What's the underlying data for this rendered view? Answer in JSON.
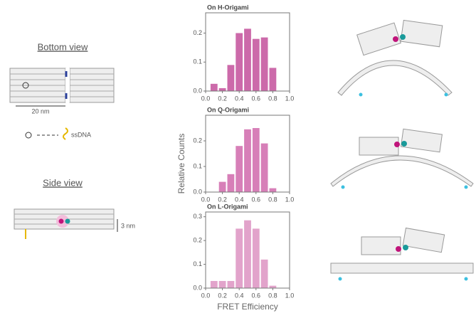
{
  "figure": {
    "ylabel": "Relative Counts",
    "xlabel": "FRET Efficiency",
    "bottom_view": "Bottom view",
    "scale": "20 nm",
    "ssdna": "ssDNA",
    "side_view": "Side view",
    "height": "3 nm"
  },
  "chart_data": [
    {
      "type": "histogram",
      "title": "On H-Origami",
      "color": "#cc6aaa",
      "bins": [
        0.05,
        0.15,
        0.25,
        0.35,
        0.45,
        0.55,
        0.65,
        0.75,
        0.85
      ],
      "values": [
        0.025,
        0.01,
        0.09,
        0.2,
        0.215,
        0.18,
        0.185,
        0.08
      ],
      "xlim": [
        0,
        1
      ],
      "xticks": [
        {
          "value": 0,
          "label": "0.0"
        },
        0.2,
        0.4,
        0.6,
        0.8,
        {
          "value": 1,
          "label": "1.0"
        }
      ],
      "ylim": [
        0,
        0.27
      ],
      "yticks": [
        {
          "value": 0,
          "label": "0.0"
        },
        0.1,
        0.2
      ]
    },
    {
      "type": "histogram",
      "title": "On Q-Origami",
      "color": "#d77fb8",
      "bins": [
        0.05,
        0.15,
        0.25,
        0.35,
        0.45,
        0.55,
        0.65,
        0.75,
        0.85
      ],
      "values": [
        0,
        0.04,
        0.07,
        0.18,
        0.245,
        0.25,
        0.19,
        0.015
      ],
      "xlim": [
        0,
        1
      ],
      "xticks": [
        {
          "value": 0,
          "label": "0.0"
        },
        0.2,
        0.4,
        0.6,
        0.8,
        {
          "value": 1,
          "label": "1.0"
        }
      ],
      "ylim": [
        0,
        0.3
      ],
      "yticks": [
        {
          "value": 0,
          "label": "0.0"
        },
        0.1,
        0.2
      ]
    },
    {
      "type": "histogram",
      "title": "On L-Origami",
      "color": "#e2a3cb",
      "bins": [
        0.05,
        0.15,
        0.25,
        0.35,
        0.45,
        0.55,
        0.65,
        0.75,
        0.85
      ],
      "values": [
        0.03,
        0.03,
        0.03,
        0.25,
        0.285,
        0.25,
        0.12,
        0.01
      ],
      "xlim": [
        0,
        1
      ],
      "xticks": [
        {
          "value": 0,
          "label": "0.0"
        },
        0.2,
        0.4,
        0.6,
        0.8,
        {
          "value": 1,
          "label": "1.0"
        }
      ],
      "ylim": [
        0,
        0.32
      ],
      "yticks": [
        {
          "value": 0,
          "label": "0.0"
        },
        0.1,
        0.2,
        0.3
      ]
    }
  ]
}
